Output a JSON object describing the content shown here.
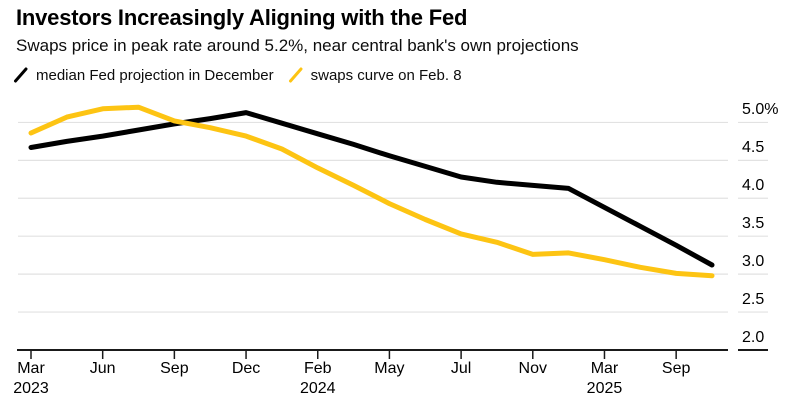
{
  "header": {
    "title": "Investors Increasingly Aligning with the Fed",
    "subtitle": "Swaps price in peak rate around 5.2%, near central bank's own projections"
  },
  "legend": {
    "items": [
      {
        "label": "median Fed projection in December",
        "color": "#000000"
      },
      {
        "label": "swaps curve on Feb. 8",
        "color": "#FDC413"
      }
    ]
  },
  "colors": {
    "background": "#ffffff",
    "gridline": "#e2e2e2",
    "axis": "#1a1a1a",
    "text": "#000000",
    "fed_line": "#000000",
    "swaps_line": "#FDC413"
  },
  "chart_data": {
    "type": "line",
    "title": "Investors Increasingly Aligning with the Fed",
    "subtitle": "Swaps price in peak rate around 5.2%, near central bank's own projections",
    "unit": "%",
    "grid": true,
    "legend_position": "top",
    "y_axis": {
      "side": "right",
      "tick_labels": [
        "5.0%",
        "4.5",
        "4.0",
        "3.5",
        "3.0",
        "2.5",
        "2.0"
      ],
      "tick_values": [
        5.0,
        4.5,
        4.0,
        3.5,
        3.0,
        2.5,
        2.0
      ],
      "ylim": [
        2.0,
        5.35
      ]
    },
    "x_axis": {
      "num_points": 20,
      "tick_point_indices": [
        0,
        2,
        4,
        6,
        8,
        10,
        12,
        14,
        16,
        18
      ],
      "tick_labels": [
        {
          "month": "Mar",
          "year": "2023"
        },
        {
          "month": "Jun",
          "year": ""
        },
        {
          "month": "Sep",
          "year": ""
        },
        {
          "month": "Dec",
          "year": ""
        },
        {
          "month": "Feb",
          "year": "2024"
        },
        {
          "month": "May",
          "year": ""
        },
        {
          "month": "Jul",
          "year": ""
        },
        {
          "month": "Nov",
          "year": ""
        },
        {
          "month": "Mar",
          "year": "2025"
        },
        {
          "month": "Sep",
          "year": ""
        }
      ]
    },
    "series": [
      {
        "name": "median Fed projection in December",
        "color": "#000000",
        "values": [
          4.67,
          4.75,
          4.82,
          4.9,
          4.98,
          5.05,
          5.13,
          4.99,
          4.85,
          4.71,
          4.56,
          4.42,
          4.28,
          4.21,
          4.17,
          4.13,
          3.88,
          3.63,
          3.38,
          3.12
        ]
      },
      {
        "name": "swaps curve on Feb. 8",
        "color": "#FDC413",
        "values": [
          4.86,
          5.07,
          5.18,
          5.2,
          5.02,
          4.93,
          4.82,
          4.65,
          4.4,
          4.17,
          3.93,
          3.72,
          3.53,
          3.42,
          3.26,
          3.28,
          3.19,
          3.09,
          3.01,
          2.98
        ]
      }
    ]
  }
}
